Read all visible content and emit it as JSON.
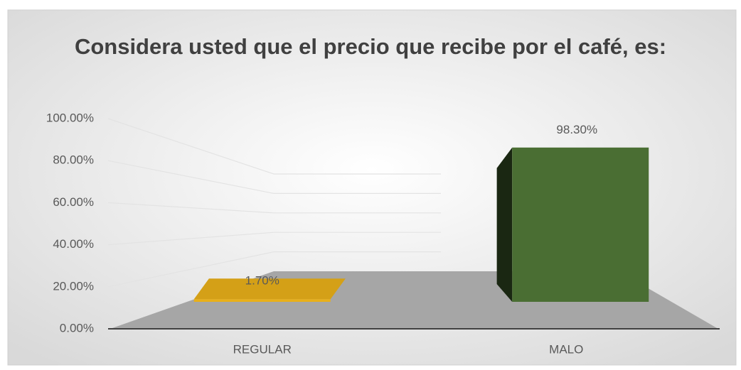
{
  "chart_data": {
    "type": "bar3d",
    "title": "Considera usted que el precio que recibe por el café, es:",
    "categories": [
      "REGULAR",
      "MALO"
    ],
    "values": [
      1.7,
      98.3
    ],
    "value_labels": [
      "1.70%",
      "98.30%"
    ],
    "colors": [
      "#d4a017",
      "#4a6e33"
    ],
    "ylim": [
      0,
      100
    ],
    "yticks": [
      {
        "value": 0,
        "label": "0.00%"
      },
      {
        "value": 20,
        "label": "20.00%"
      },
      {
        "value": 40,
        "label": "40.00%"
      },
      {
        "value": 60,
        "label": "60.00%"
      },
      {
        "value": 80,
        "label": "80.00%"
      },
      {
        "value": 100,
        "label": "100.00%"
      }
    ],
    "grid": true
  }
}
